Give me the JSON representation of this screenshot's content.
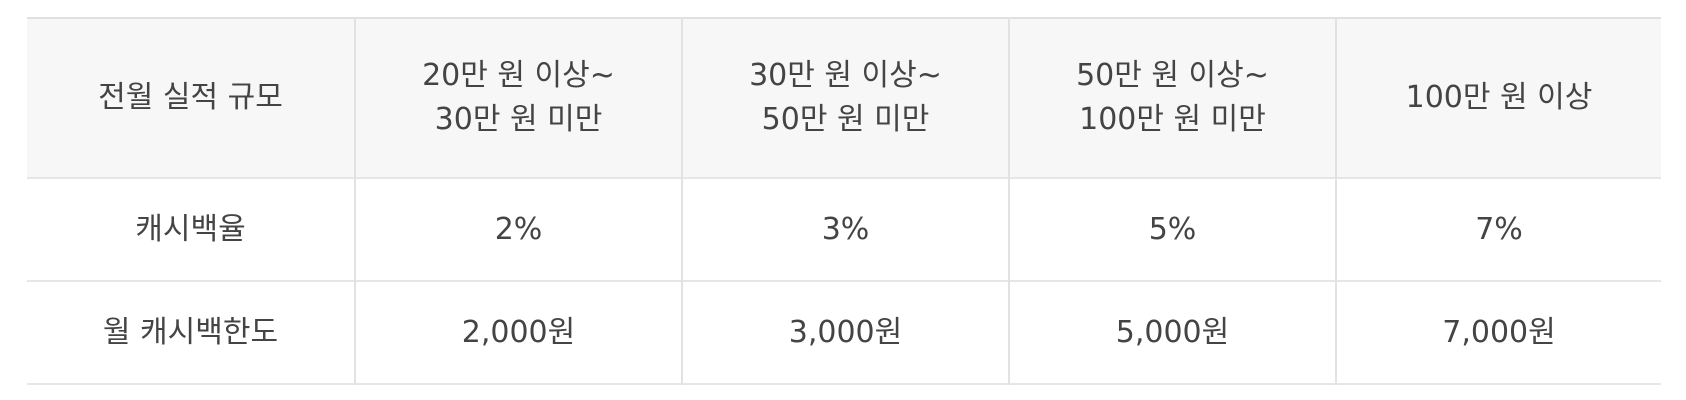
{
  "table": {
    "header": {
      "label": "전월 실적 규모",
      "tiers": [
        {
          "line1": "20만 원 이상~",
          "line2": "30만 원 미만"
        },
        {
          "line1": "30만 원 이상~",
          "line2": "50만 원 미만"
        },
        {
          "line1": "50만 원 이상~",
          "line2": "100만 원 미만"
        },
        {
          "line1": "100만 원 이상",
          "line2": ""
        }
      ]
    },
    "rows": [
      {
        "label": "캐시백율",
        "cells": [
          "2%",
          "3%",
          "5%",
          "7%"
        ]
      },
      {
        "label": "월 캐시백한도",
        "cells": [
          "2,000원",
          "3,000원",
          "5,000원",
          "7,000원"
        ]
      }
    ]
  }
}
